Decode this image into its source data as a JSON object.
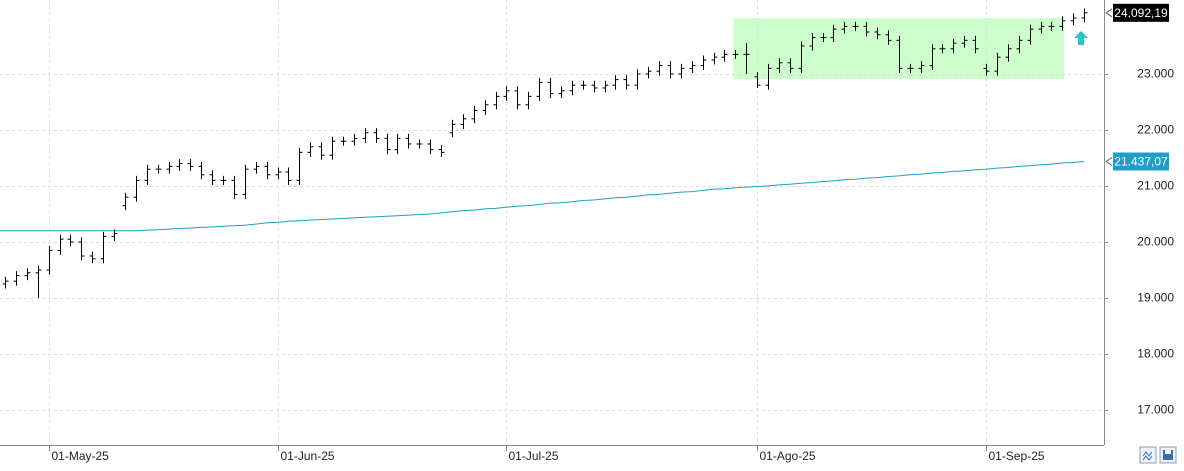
{
  "chart_data": {
    "type": "ohlc",
    "categories": [
      null,
      null,
      null,
      null,
      "01-May-25",
      null,
      null,
      null,
      null,
      null,
      null,
      null,
      null,
      null,
      null,
      null,
      null,
      null,
      null,
      null,
      null,
      null,
      null,
      null,
      null,
      "01-Jun-25",
      null,
      null,
      null,
      null,
      null,
      null,
      null,
      null,
      null,
      null,
      null,
      null,
      null,
      null,
      null,
      null,
      null,
      null,
      null,
      null,
      "01-Jul-25",
      null,
      null,
      null,
      null,
      null,
      null,
      null,
      null,
      null,
      null,
      null,
      null,
      null,
      null,
      null,
      null,
      null,
      null,
      null,
      null,
      null,
      null,
      "01-Ago-25",
      null,
      null,
      null,
      null,
      null,
      null,
      null,
      null,
      null,
      null,
      null,
      null,
      null,
      null,
      null,
      null,
      null,
      null,
      null,
      null,
      "01-Sep-25",
      null,
      null,
      null,
      null,
      null,
      null,
      null,
      null,
      null
    ],
    "ohlc": {
      "color": "#000000",
      "last_label": "24.092,19",
      "open": [
        19250,
        19300,
        19400,
        19450,
        19500,
        19850,
        20050,
        20000,
        19750,
        19700,
        20100,
        20650,
        20800,
        21100,
        21300,
        21300,
        21350,
        21400,
        21350,
        21200,
        21100,
        21100,
        20850,
        21300,
        21350,
        21200,
        21250,
        21100,
        21600,
        21700,
        21550,
        21800,
        21800,
        21850,
        21950,
        21850,
        21650,
        21850,
        21750,
        21750,
        21650,
        21950,
        22100,
        22200,
        22350,
        22450,
        22600,
        22700,
        22450,
        22600,
        22850,
        22650,
        22700,
        22800,
        22800,
        22750,
        22800,
        22900,
        22800,
        23000,
        23050,
        23150,
        23000,
        23100,
        23150,
        23250,
        23300,
        23350,
        23350,
        22950,
        22800,
        23100,
        23200,
        23100,
        23500,
        23650,
        23650,
        23800,
        23850,
        23850,
        23750,
        23700,
        23600,
        23100,
        23100,
        23150,
        23450,
        23450,
        23550,
        23600,
        23100,
        23050,
        23300,
        23450,
        23600,
        23800,
        23850,
        23850,
        23950,
        24000
      ],
      "high": [
        19380,
        19480,
        19530,
        19580,
        19930,
        20130,
        20130,
        20080,
        19830,
        20180,
        20230,
        20880,
        21180,
        21380,
        21380,
        21430,
        21480,
        21480,
        21430,
        21280,
        21180,
        21180,
        21380,
        21430,
        21430,
        21330,
        21330,
        21680,
        21780,
        21780,
        21880,
        21880,
        21930,
        22030,
        22030,
        21930,
        21930,
        21930,
        21830,
        21830,
        21730,
        22180,
        22280,
        22430,
        22530,
        22680,
        22780,
        22780,
        22680,
        22930,
        22930,
        22780,
        22880,
        22880,
        22880,
        22880,
        22980,
        22980,
        23080,
        23130,
        23230,
        23230,
        23180,
        23230,
        23330,
        23380,
        23430,
        23430,
        23550,
        23030,
        23180,
        23280,
        23280,
        23580,
        23730,
        23730,
        23880,
        23930,
        23930,
        23930,
        23830,
        23780,
        23680,
        23180,
        23230,
        23530,
        23530,
        23630,
        23680,
        23680,
        23180,
        23380,
        23530,
        23680,
        23880,
        23930,
        23930,
        24030,
        24080,
        24170
      ],
      "low": [
        19170,
        19220,
        19320,
        19000,
        19420,
        19770,
        19920,
        19670,
        19620,
        19620,
        20020,
        20570,
        20720,
        21020,
        21220,
        21220,
        21270,
        21270,
        21120,
        21020,
        21020,
        20770,
        20770,
        21220,
        21120,
        21120,
        21020,
        21020,
        21520,
        21470,
        21470,
        21720,
        21720,
        21770,
        21770,
        21570,
        21570,
        21670,
        21670,
        21570,
        21520,
        21870,
        22020,
        22120,
        22270,
        22370,
        22520,
        22370,
        22370,
        22520,
        22570,
        22570,
        22620,
        22720,
        22670,
        22670,
        22720,
        22720,
        22720,
        22920,
        22970,
        22920,
        22920,
        23020,
        23070,
        23170,
        23220,
        23270,
        23000,
        22750,
        22720,
        23020,
        23020,
        23020,
        23420,
        23570,
        23570,
        23720,
        23770,
        23670,
        23620,
        23520,
        23020,
        23020,
        23020,
        23070,
        23370,
        23370,
        23470,
        23370,
        22970,
        22970,
        23220,
        23370,
        23520,
        23720,
        23770,
        23770,
        23870,
        23920
      ],
      "close": [
        19300,
        19400,
        19450,
        19500,
        19850,
        20050,
        20000,
        19750,
        19700,
        20100,
        20150,
        20800,
        21100,
        21300,
        21300,
        21350,
        21400,
        21350,
        21200,
        21100,
        21100,
        20850,
        21300,
        21350,
        21200,
        21250,
        21100,
        21600,
        21700,
        21550,
        21800,
        21800,
        21850,
        21950,
        21850,
        21650,
        21850,
        21750,
        21750,
        21650,
        21600,
        22100,
        22200,
        22350,
        22450,
        22600,
        22700,
        22450,
        22600,
        22850,
        22650,
        22700,
        22800,
        22800,
        22750,
        22800,
        22900,
        22800,
        23000,
        23050,
        23150,
        23000,
        23100,
        23150,
        23250,
        23300,
        23350,
        23350,
        23350,
        22800,
        23100,
        23200,
        23100,
        23500,
        23650,
        23650,
        23800,
        23850,
        23850,
        23750,
        23700,
        23600,
        23100,
        23100,
        23150,
        23450,
        23450,
        23550,
        23600,
        23450,
        23050,
        23300,
        23450,
        23600,
        23800,
        23850,
        23850,
        23950,
        24000,
        24092.19
      ]
    },
    "line": {
      "color": "#1f9fc8",
      "last_label": "21.437,07",
      "values": [
        20200,
        20200,
        20200,
        20200,
        20200,
        20200,
        20200,
        20200,
        20200,
        20200,
        20200,
        20200,
        20200,
        20210,
        20220,
        20230,
        20240,
        20250,
        20260,
        20270,
        20280,
        20290,
        20300,
        20320,
        20340,
        20350,
        20370,
        20380,
        20390,
        20400,
        20410,
        20420,
        20430,
        20440,
        20450,
        20460,
        20470,
        20480,
        20490,
        20500,
        20520,
        20540,
        20560,
        20570,
        20590,
        20600,
        20620,
        20640,
        20650,
        20670,
        20690,
        20700,
        20720,
        20740,
        20750,
        20770,
        20790,
        20800,
        20820,
        20840,
        20850,
        20870,
        20890,
        20900,
        20920,
        20940,
        20950,
        20970,
        20980,
        20990,
        21000,
        21020,
        21030,
        21050,
        21060,
        21080,
        21090,
        21110,
        21120,
        21140,
        21150,
        21170,
        21180,
        21200,
        21210,
        21230,
        21240,
        21260,
        21270,
        21290,
        21300,
        21320,
        21330,
        21350,
        21360,
        21380,
        21390,
        21410,
        21420,
        21437.07
      ]
    },
    "highlight": {
      "from": 67,
      "to": 97,
      "ylim": [
        22910,
        24000
      ],
      "color": "#ccffcc"
    },
    "ylim": [
      16375,
      24321
    ],
    "yticks": [
      {
        "value": 17000,
        "label": "17.000"
      },
      {
        "value": 18000,
        "label": "18.000"
      },
      {
        "value": 19000,
        "label": "19.000"
      },
      {
        "value": 20000,
        "label": "20.000"
      },
      {
        "value": 21000,
        "label": "21.000"
      },
      {
        "value": 22000,
        "label": "22.000"
      },
      {
        "value": 23000,
        "label": "23.000"
      }
    ],
    "grid": true
  }
}
